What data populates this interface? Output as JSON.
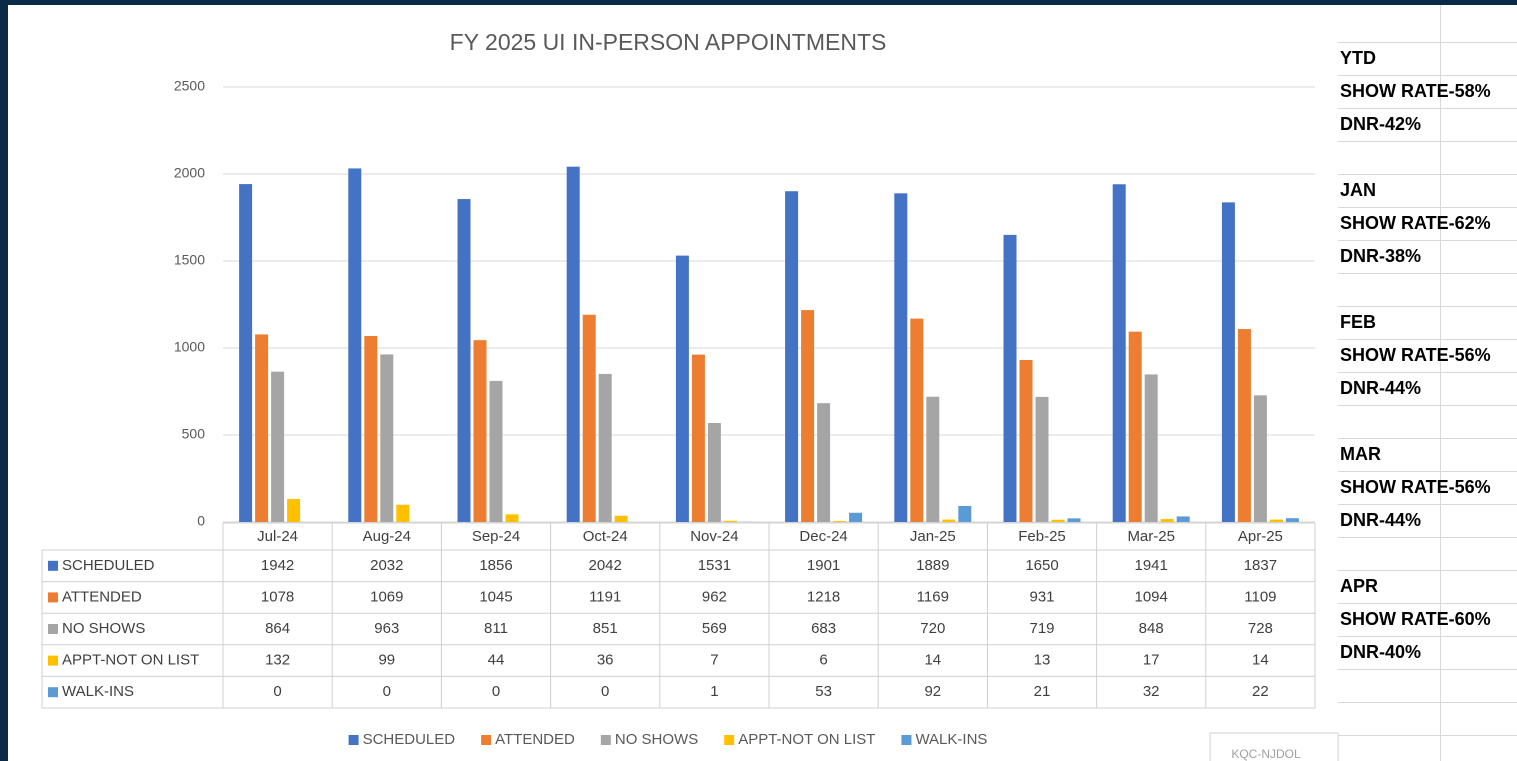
{
  "chart_data": {
    "type": "bar",
    "title": "FY 2025 UI IN-PERSON APPOINTMENTS",
    "categories": [
      "Jul-24",
      "Aug-24",
      "Sep-24",
      "Oct-24",
      "Nov-24",
      "Dec-24",
      "Jan-25",
      "Feb-25",
      "Mar-25",
      "Apr-25"
    ],
    "series": [
      {
        "name": "SCHEDULED",
        "color": "#4472c4",
        "values": [
          1942,
          2032,
          1856,
          2042,
          1531,
          1901,
          1889,
          1650,
          1941,
          1837
        ]
      },
      {
        "name": "ATTENDED",
        "color": "#ed7d31",
        "values": [
          1078,
          1069,
          1045,
          1191,
          962,
          1218,
          1169,
          931,
          1094,
          1109
        ]
      },
      {
        "name": "NO SHOWS",
        "color": "#a5a5a5",
        "values": [
          864,
          963,
          811,
          851,
          569,
          683,
          720,
          719,
          848,
          728
        ]
      },
      {
        "name": "APPT-NOT ON LIST",
        "color": "#ffc000",
        "values": [
          132,
          99,
          44,
          36,
          7,
          6,
          14,
          13,
          17,
          14
        ]
      },
      {
        "name": "WALK-INS",
        "color": "#5b9bd5",
        "values": [
          0,
          0,
          0,
          0,
          1,
          53,
          92,
          21,
          32,
          22
        ]
      }
    ],
    "ylim": [
      0,
      2500
    ],
    "yticks": [
      0,
      500,
      1000,
      1500,
      2000,
      2500
    ],
    "grid": true,
    "legend": "bottom"
  },
  "notes": [
    {
      "period": "YTD",
      "show_rate": "SHOW RATE-58%",
      "dnr": "DNR-42%"
    },
    {
      "period": "JAN",
      "show_rate": "SHOW RATE-62%",
      "dnr": "DNR-38%"
    },
    {
      "period": "FEB",
      "show_rate": "SHOW RATE-56%",
      "dnr": "DNR-44%"
    },
    {
      "period": "MAR",
      "show_rate": "SHOW RATE-56%",
      "dnr": "DNR-44%"
    },
    {
      "period": "APR",
      "show_rate": "SHOW RATE-60%",
      "dnr": "DNR-40%"
    }
  ],
  "stamp": "KQC-NJDOL"
}
